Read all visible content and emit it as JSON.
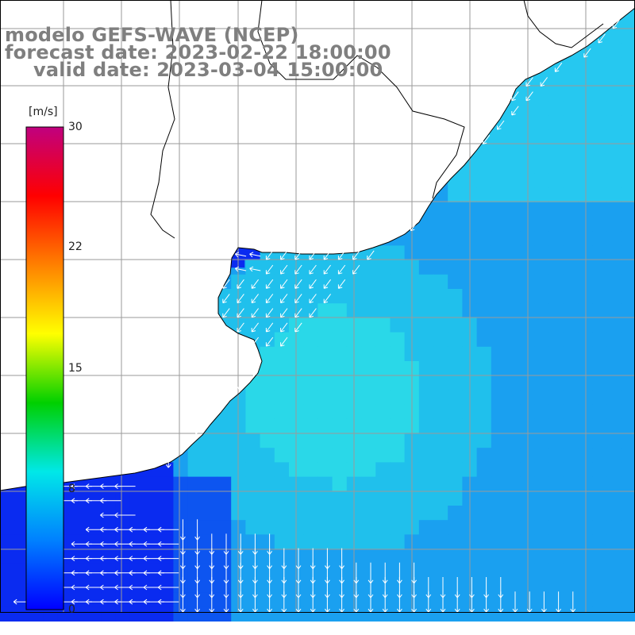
{
  "title": {
    "line1": "modelo GEFS-WAVE (NCEP)",
    "line2": "forecast date: 2023-02-22 18:00:00",
    "line3": "valid date: 2023-03-04 15:00:00"
  },
  "colorbar": {
    "unit": "[m/s]",
    "min": 0,
    "max": 30,
    "ticks": [
      "30",
      "22",
      "15",
      "8",
      "0"
    ],
    "colors": [
      "#0000ff",
      "#0080ff",
      "#00e8e8",
      "#00d000",
      "#ffff00",
      "#ff8000",
      "#ff0000",
      "#c0007f"
    ]
  },
  "map": {
    "field": "wind speed",
    "land_color": "#ffffff",
    "coast_color": "#000000",
    "grid_color": "#9a9a9a",
    "arrow_color": "#ffffff",
    "field_colors": {
      "low": "#0a2bf0",
      "mid": "#1aa0f0",
      "high": "#2ad8e8"
    }
  }
}
